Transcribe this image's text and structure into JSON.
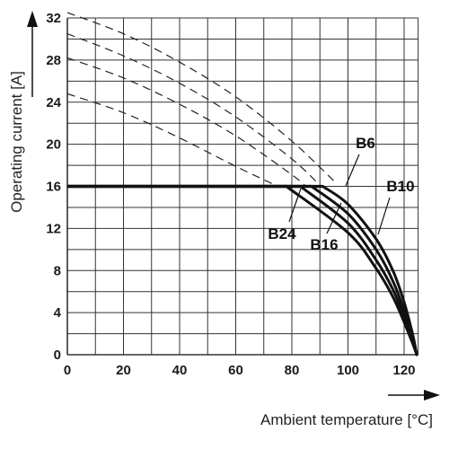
{
  "chart_data": {
    "type": "line",
    "title": "",
    "xlabel": "Ambient temperature [°C]",
    "ylabel": "Operating current [A]",
    "xlim": [
      0,
      125
    ],
    "ylim": [
      0,
      32
    ],
    "x_ticks": [
      0,
      20,
      40,
      60,
      80,
      100,
      120
    ],
    "y_ticks": [
      0,
      4,
      8,
      12,
      16,
      20,
      24,
      28,
      32
    ],
    "grid": true,
    "line_color": "#111111",
    "dashed_curves": [
      {
        "points": [
          [
            0,
            32.5
          ],
          [
            20,
            30.5
          ],
          [
            40,
            27.8
          ],
          [
            60,
            24.5
          ],
          [
            80,
            20.3
          ],
          [
            95,
            16.5
          ]
        ]
      },
      {
        "points": [
          [
            0,
            30.5
          ],
          [
            20,
            28.4
          ],
          [
            40,
            25.8
          ],
          [
            60,
            22.6
          ],
          [
            80,
            18.6
          ],
          [
            90,
            16.1
          ]
        ]
      },
      {
        "points": [
          [
            0,
            28.2
          ],
          [
            20,
            26.3
          ],
          [
            40,
            23.8
          ],
          [
            60,
            20.8
          ],
          [
            80,
            17.1
          ],
          [
            85,
            16.0
          ]
        ]
      },
      {
        "points": [
          [
            0,
            24.8
          ],
          [
            20,
            23.0
          ],
          [
            40,
            20.6
          ],
          [
            60,
            17.9
          ],
          [
            75,
            16.0
          ]
        ]
      }
    ],
    "series": [
      {
        "name": "B6",
        "points": [
          [
            0,
            16
          ],
          [
            91,
            16
          ],
          [
            100,
            14.3
          ],
          [
            110,
            11.0
          ],
          [
            116,
            8.0
          ],
          [
            120,
            5.0
          ],
          [
            123,
            2.0
          ],
          [
            124.5,
            0
          ]
        ]
      },
      {
        "name": "B10",
        "points": [
          [
            0,
            16
          ],
          [
            87,
            16
          ],
          [
            100,
            13.4
          ],
          [
            110,
            10.0
          ],
          [
            116,
            7.0
          ],
          [
            120,
            4.2
          ],
          [
            123,
            1.6
          ],
          [
            124.5,
            0
          ]
        ]
      },
      {
        "name": "B16",
        "points": [
          [
            0,
            16
          ],
          [
            83,
            16
          ],
          [
            100,
            12.5
          ],
          [
            110,
            9.0
          ],
          [
            116,
            6.2
          ],
          [
            120,
            3.6
          ],
          [
            123,
            1.3
          ],
          [
            124.5,
            0
          ]
        ]
      },
      {
        "name": "B24",
        "points": [
          [
            0,
            16
          ],
          [
            78,
            16
          ],
          [
            100,
            11.6
          ],
          [
            110,
            8.2
          ],
          [
            116,
            5.5
          ],
          [
            120,
            3.1
          ],
          [
            123,
            1.1
          ],
          [
            124.5,
            0
          ]
        ]
      }
    ]
  }
}
